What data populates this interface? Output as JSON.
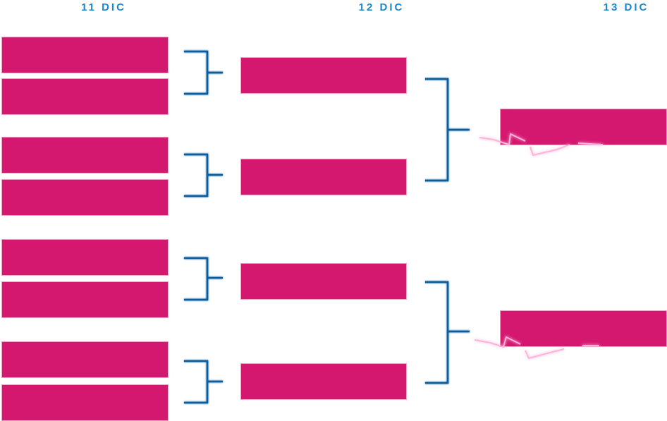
{
  "rounds": [
    {
      "label": "11 DIC",
      "slots": 8
    },
    {
      "label": "12 DIC",
      "slots": 4
    },
    {
      "label": "13 DIC",
      "slots": 2
    }
  ],
  "colors": {
    "slot": "#d4176f",
    "connector": "#0d5d9e",
    "label": "#1a86cc",
    "spark": "#ff9fd0"
  }
}
